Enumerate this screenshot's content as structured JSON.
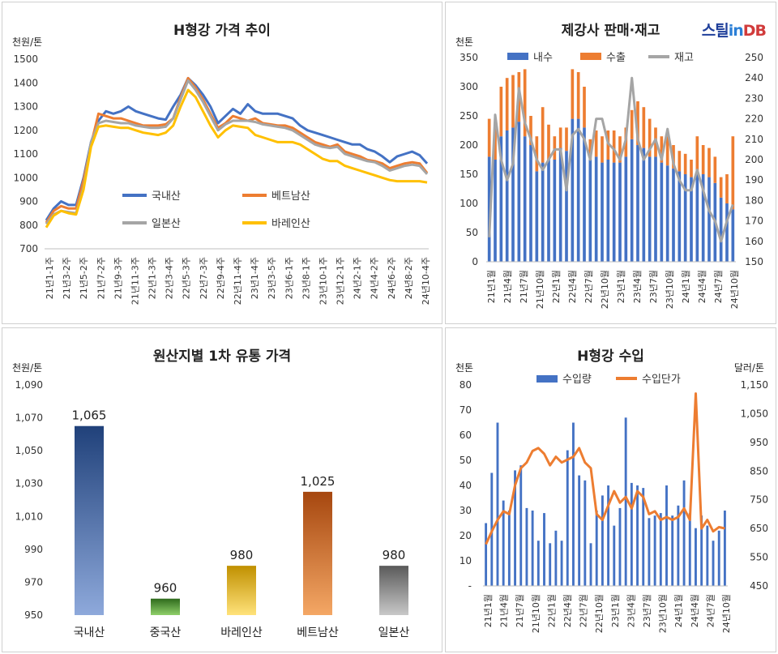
{
  "colors": {
    "domestic": "#4472c4",
    "vietnam": "#ed7d31",
    "japan": "#a5a5a5",
    "bahrain": "#ffc000",
    "export": "#ed7d31",
    "inventory": "#a5a5a5",
    "import_qty": "#4472c4",
    "import_price": "#ed7d31"
  },
  "logo": {
    "part1": "스틸",
    "part2": "in",
    "part3": "DB"
  },
  "chart_data": [
    {
      "type": "line",
      "title": "H형강 가격 추이",
      "ylabel": "천원/톤",
      "ylim": [
        700,
        1500
      ],
      "yticks": [
        "700",
        "800",
        "900",
        "1000",
        "1100",
        "1200",
        "1300",
        "1400",
        "1500"
      ],
      "xticks": [
        "21년1-1주",
        "21년3-2주",
        "21년5-2주",
        "21년7-2주",
        "21년9-3주",
        "21년11-3주",
        "22년1-3주",
        "22년3-4주",
        "22년5-3주",
        "22년7-3주",
        "22년9-4주",
        "22년11-4주",
        "23년1-4주",
        "23년3-5주",
        "23년6-1주",
        "23년8-1주",
        "23년10-1주",
        "23년12-1주",
        "24년2-1주",
        "24년4-2주",
        "24년6-2주",
        "24년8-2주",
        "24년10-4주"
      ],
      "legend_position": "inside-bottom",
      "series": [
        {
          "name": "국내산",
          "color_key": "domestic",
          "values": [
            820,
            870,
            900,
            885,
            885,
            1000,
            1150,
            1240,
            1280,
            1270,
            1280,
            1300,
            1280,
            1270,
            1260,
            1250,
            1245,
            1300,
            1350,
            1420,
            1390,
            1350,
            1300,
            1230,
            1260,
            1290,
            1270,
            1310,
            1280,
            1270,
            1270,
            1270,
            1260,
            1250,
            1220,
            1200,
            1190,
            1180,
            1170,
            1160,
            1150,
            1140,
            1140,
            1120,
            1110,
            1090,
            1065,
            1090,
            1100,
            1110,
            1095,
            1060
          ]
        },
        {
          "name": "베트남산",
          "color_key": "vietnam",
          "values": [
            810,
            860,
            880,
            870,
            870,
            990,
            1140,
            1270,
            1260,
            1250,
            1250,
            1240,
            1230,
            1220,
            1220,
            1220,
            1225,
            1250,
            1340,
            1420,
            1380,
            1330,
            1270,
            1210,
            1230,
            1260,
            1250,
            1240,
            1250,
            1230,
            1225,
            1220,
            1220,
            1210,
            1190,
            1170,
            1150,
            1140,
            1130,
            1140,
            1110,
            1100,
            1090,
            1075,
            1070,
            1060,
            1040,
            1050,
            1060,
            1065,
            1060,
            1020
          ]
        },
        {
          "name": "일본산",
          "color_key": "japan",
          "values": [
            805,
            845,
            860,
            855,
            850,
            960,
            1150,
            1230,
            1240,
            1235,
            1230,
            1230,
            1220,
            1215,
            1210,
            1210,
            1215,
            1250,
            1330,
            1410,
            1370,
            1320,
            1260,
            1200,
            1225,
            1240,
            1240,
            1240,
            1235,
            1225,
            1220,
            1215,
            1210,
            1200,
            1180,
            1160,
            1140,
            1130,
            1125,
            1130,
            1100,
            1090,
            1080,
            1070,
            1065,
            1050,
            1030,
            1040,
            1050,
            1055,
            1050,
            1015
          ]
        },
        {
          "name": "바레인산",
          "color_key": "bahrain",
          "values": [
            790,
            840,
            860,
            850,
            845,
            950,
            1130,
            1215,
            1220,
            1215,
            1210,
            1210,
            1200,
            1190,
            1185,
            1180,
            1190,
            1220,
            1300,
            1370,
            1340,
            1280,
            1220,
            1170,
            1200,
            1220,
            1215,
            1210,
            1180,
            1170,
            1160,
            1150,
            1150,
            1150,
            1140,
            1120,
            1100,
            1080,
            1070,
            1070,
            1050,
            1040,
            1030,
            1020,
            1010,
            1000,
            990,
            985,
            985,
            985,
            985,
            980
          ]
        }
      ]
    },
    {
      "type": "bar+line",
      "title": "제강사 판매·재고",
      "ylabel": "천톤",
      "ylim": [
        0,
        350
      ],
      "yticks": [
        "0",
        "50",
        "100",
        "150",
        "200",
        "250",
        "300",
        "350"
      ],
      "y2lim": [
        150,
        250
      ],
      "y2ticks": [
        "150",
        "160",
        "170",
        "180",
        "190",
        "200",
        "210",
        "220",
        "230",
        "240",
        "250"
      ],
      "xticks": [
        "21년1월",
        "21년4월",
        "21년7월",
        "21년10월",
        "22년1월",
        "22년4월",
        "22년7월",
        "22년10월",
        "23년1월",
        "23년4월",
        "23년7월",
        "23년10월",
        "24년1월",
        "24년4월",
        "24년7월",
        "24년10월"
      ],
      "legend_position": "top",
      "series": [
        {
          "name": "내수",
          "color_key": "domestic",
          "kind": "stacked-bar",
          "values": [
            180,
            175,
            215,
            225,
            230,
            240,
            215,
            200,
            155,
            170,
            175,
            175,
            195,
            190,
            245,
            245,
            230,
            175,
            180,
            170,
            175,
            170,
            170,
            180,
            210,
            200,
            195,
            180,
            180,
            170,
            165,
            160,
            155,
            150,
            145,
            155,
            150,
            145,
            135,
            110,
            100,
            90
          ]
        },
        {
          "name": "수출",
          "color_key": "export",
          "kind": "stacked-bar",
          "values": [
            65,
            60,
            85,
            90,
            90,
            85,
            115,
            50,
            60,
            95,
            60,
            40,
            35,
            40,
            85,
            80,
            70,
            35,
            45,
            45,
            50,
            55,
            45,
            50,
            50,
            75,
            70,
            65,
            50,
            45,
            50,
            40,
            35,
            35,
            30,
            60,
            50,
            50,
            45,
            35,
            50,
            125
          ]
        },
        {
          "name": "재고",
          "color_key": "inventory",
          "kind": "line-secondary",
          "values": [
            162,
            222,
            200,
            190,
            198,
            235,
            218,
            210,
            200,
            195,
            200,
            205,
            205,
            185,
            212,
            215,
            210,
            200,
            220,
            220,
            208,
            205,
            200,
            210,
            240,
            210,
            200,
            205,
            210,
            200,
            215,
            198,
            190,
            185,
            185,
            195,
            185,
            175,
            170,
            160,
            170,
            178
          ]
        }
      ]
    },
    {
      "type": "bar",
      "title": "원산지별 1차 유통 가격",
      "ylabel": "천원/톤",
      "ylim": [
        950,
        1090
      ],
      "yticks": [
        "950",
        "970",
        "990",
        "1,010",
        "1,030",
        "1,050",
        "1,070",
        "1,090"
      ],
      "categories": [
        "국내산",
        "중국산",
        "바레인산",
        "베트남산",
        "일본산"
      ],
      "values": [
        1065,
        960,
        980,
        1025,
        980
      ],
      "value_labels": [
        "1,065",
        "960",
        "980",
        "1,025",
        "980"
      ],
      "bar_colors": [
        [
          "#20417a",
          "#8ea9db"
        ],
        [
          "#2e6a1c",
          "#8fcf6a"
        ],
        [
          "#c09000",
          "#ffe27a"
        ],
        [
          "#a6470f",
          "#f4a765"
        ],
        [
          "#5a5a5a",
          "#c8c8c8"
        ]
      ]
    },
    {
      "type": "bar+line",
      "title": "H형강 수입",
      "ylabel": "천톤",
      "y2label": "달러/톤",
      "ylim": [
        0,
        80
      ],
      "yticks": [
        "-",
        "10",
        "20",
        "30",
        "40",
        "50",
        "60",
        "70",
        "80"
      ],
      "y2lim": [
        450,
        1150
      ],
      "y2ticks": [
        "450",
        "550",
        "650",
        "750",
        "850",
        "950",
        "1,050",
        "1,150"
      ],
      "xticks": [
        "21년1월",
        "21년4월",
        "21년7월",
        "21년10월",
        "22년1월",
        "22년4월",
        "22년7월",
        "22년10월",
        "23년1월",
        "23년4월",
        "23년7월",
        "23년10월",
        "24년1월",
        "24년4월",
        "24년7월",
        "24년10월"
      ],
      "legend_position": "top",
      "series": [
        {
          "name": "수입량",
          "color_key": "import_qty",
          "kind": "bar",
          "values": [
            25,
            45,
            65,
            34,
            30,
            46,
            48,
            31,
            30,
            18,
            29,
            17,
            22,
            18,
            54,
            65,
            44,
            42,
            17,
            30,
            36,
            40,
            24,
            31,
            67,
            41,
            40,
            39,
            27,
            28,
            29,
            40,
            28,
            32,
            42,
            29,
            23,
            28,
            24,
            18,
            22,
            30
          ]
        },
        {
          "name": "수입단가",
          "color_key": "import_price",
          "kind": "line-secondary",
          "values": [
            595,
            640,
            680,
            710,
            700,
            800,
            860,
            880,
            920,
            930,
            910,
            870,
            900,
            880,
            890,
            900,
            930,
            880,
            860,
            700,
            680,
            730,
            780,
            740,
            760,
            720,
            780,
            760,
            700,
            710,
            680,
            690,
            680,
            690,
            720,
            680,
            1120,
            650,
            680,
            640,
            655,
            650
          ]
        }
      ]
    }
  ]
}
